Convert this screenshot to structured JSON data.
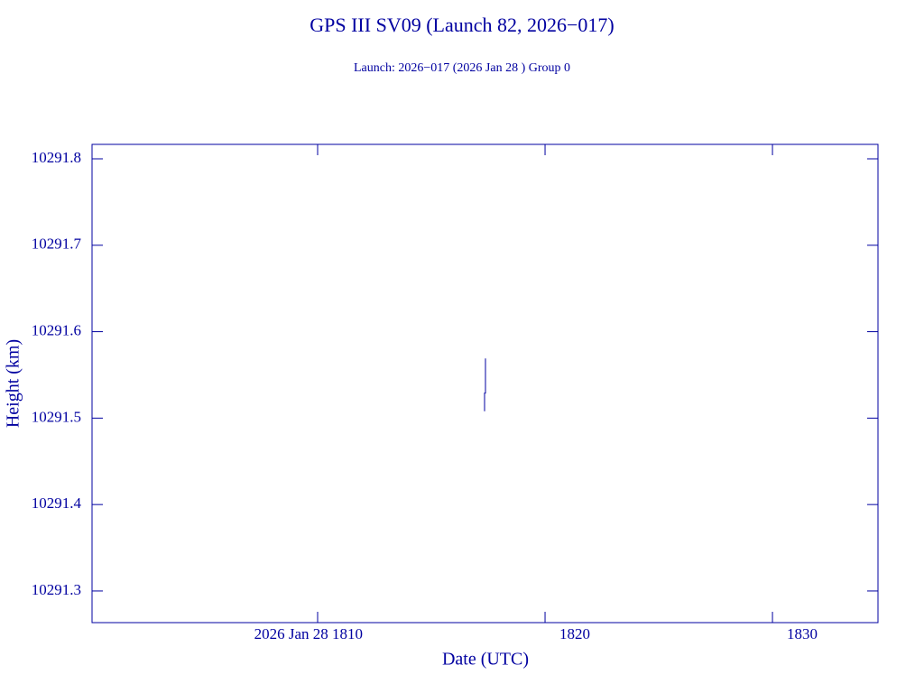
{
  "chart_data": {
    "type": "line",
    "title": "GPS III SV09 (Launch 82, 2026−017)",
    "subtitle": "Launch: 2026−017  (2026 Jan 28 )  Group 0",
    "x_label": "Date (UTC)",
    "y_label": "Height (km)",
    "color": "#0000a0",
    "x": [
      17.38,
      17.38,
      17.34,
      17.34
    ],
    "values": [
      10291.569,
      10291.529,
      10291.529,
      10291.508
    ],
    "xlim": [
      0.08,
      34.64
    ],
    "xticks": [
      {
        "value": 10,
        "label": "2026 Jan 28  1810"
      },
      {
        "value": 20,
        "label": "1820"
      },
      {
        "value": 30,
        "label": "1830"
      }
    ],
    "ylim": [
      10291.2634,
      10291.8167
    ],
    "yticks": [
      10291.3,
      10291.4,
      10291.5,
      10291.6,
      10291.7,
      10291.8
    ]
  }
}
